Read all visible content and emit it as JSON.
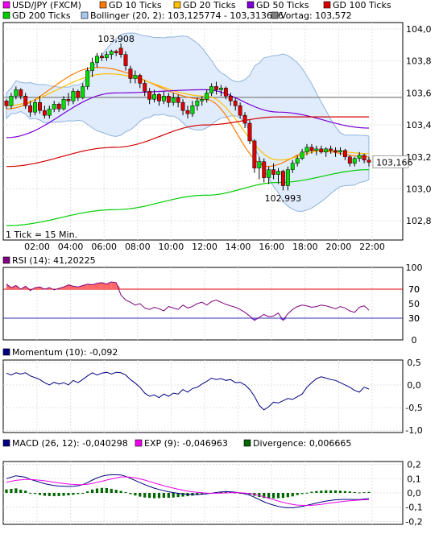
{
  "chart_data": [
    {
      "type": "candlestick",
      "panel": "price",
      "legend": [
        {
          "label": "USD/JPY (FXCM)",
          "color": "#ee00ee"
        },
        {
          "label": "GD 10 Ticks",
          "color": "#ff7a00"
        },
        {
          "label": "GD 20 Ticks",
          "color": "#ffc000"
        },
        {
          "label": "GD 50 Ticks",
          "color": "#7a00d6"
        },
        {
          "label": "GD 100 Ticks",
          "color": "#d40000"
        },
        {
          "label": "GD 200 Ticks",
          "color": "#00cc00"
        },
        {
          "label": "Bollinger (20, 2): 103,125774 - 103,313676",
          "color": "#a8c8f0"
        },
        {
          "label": "Vortag: 103,572",
          "color": "#808080"
        }
      ],
      "x_ticks": [
        "02:00",
        "04:00",
        "06:00",
        "08:00",
        "10:00",
        "12:00",
        "14:00",
        "16:00",
        "18:00",
        "20:00",
        "22:00"
      ],
      "y_ticks": [
        "104,0",
        "103,8",
        "103,6",
        "103,4",
        "103,2",
        "103,0",
        "102,8"
      ],
      "ylim": [
        102.68,
        104.04
      ],
      "annotations": {
        "high": "103,908",
        "low": "102,993",
        "last": "103,166",
        "tick_note": "1 Tick = 15 Min."
      },
      "vortag": 103.572,
      "candles": [
        [
          103.55,
          103.56,
          103.5,
          103.52
        ],
        [
          103.52,
          103.6,
          103.5,
          103.58
        ],
        [
          103.58,
          103.64,
          103.56,
          103.62
        ],
        [
          103.62,
          103.63,
          103.56,
          103.58
        ],
        [
          103.58,
          103.6,
          103.5,
          103.52
        ],
        [
          103.52,
          103.55,
          103.45,
          103.48
        ],
        [
          103.48,
          103.56,
          103.46,
          103.54
        ],
        [
          103.54,
          103.58,
          103.47,
          103.49
        ],
        [
          103.49,
          103.52,
          103.44,
          103.46
        ],
        [
          103.46,
          103.52,
          103.44,
          103.5
        ],
        [
          103.5,
          103.55,
          103.48,
          103.53
        ],
        [
          103.53,
          103.54,
          103.48,
          103.5
        ],
        [
          103.5,
          103.58,
          103.49,
          103.56
        ],
        [
          103.56,
          103.6,
          103.52,
          103.55
        ],
        [
          103.55,
          103.63,
          103.53,
          103.61
        ],
        [
          103.61,
          103.62,
          103.55,
          103.57
        ],
        [
          103.57,
          103.66,
          103.56,
          103.64
        ],
        [
          103.64,
          103.76,
          103.62,
          103.74
        ],
        [
          103.74,
          103.82,
          103.7,
          103.79
        ],
        [
          103.79,
          103.85,
          103.76,
          103.83
        ],
        [
          103.83,
          103.85,
          103.8,
          103.82
        ],
        [
          103.82,
          103.86,
          103.8,
          103.84
        ],
        [
          103.84,
          103.87,
          103.81,
          103.86
        ],
        [
          103.86,
          103.87,
          103.83,
          103.85
        ],
        [
          103.88,
          103.91,
          103.82,
          103.84
        ],
        [
          103.84,
          103.86,
          103.74,
          103.77
        ],
        [
          103.75,
          103.77,
          103.66,
          103.69
        ],
        [
          103.69,
          103.74,
          103.66,
          103.71
        ],
        [
          103.71,
          103.72,
          103.63,
          103.66
        ],
        [
          103.66,
          103.68,
          103.58,
          103.61
        ],
        [
          103.61,
          103.63,
          103.53,
          103.56
        ],
        [
          103.56,
          103.62,
          103.54,
          103.59
        ],
        [
          103.59,
          103.6,
          103.52,
          103.55
        ],
        [
          103.55,
          103.61,
          103.53,
          103.58
        ],
        [
          103.58,
          103.6,
          103.51,
          103.54
        ],
        [
          103.54,
          103.6,
          103.52,
          103.57
        ],
        [
          103.57,
          103.59,
          103.51,
          103.54
        ],
        [
          103.54,
          103.56,
          103.46,
          103.49
        ],
        [
          103.49,
          103.52,
          103.44,
          103.47
        ],
        [
          103.47,
          103.55,
          103.45,
          103.52
        ],
        [
          103.52,
          103.57,
          103.49,
          103.55
        ],
        [
          103.55,
          103.58,
          103.52,
          103.56
        ],
        [
          103.56,
          103.62,
          103.54,
          103.6
        ],
        [
          103.6,
          103.66,
          103.58,
          103.64
        ],
        [
          103.64,
          103.67,
          103.59,
          103.62
        ],
        [
          103.62,
          103.65,
          103.58,
          103.63
        ],
        [
          103.63,
          103.64,
          103.56,
          103.58
        ],
        [
          103.58,
          103.6,
          103.52,
          103.55
        ],
        [
          103.55,
          103.57,
          103.49,
          103.52
        ],
        [
          103.52,
          103.54,
          103.44,
          103.46
        ],
        [
          103.46,
          103.48,
          103.38,
          103.41
        ],
        [
          103.41,
          103.43,
          103.28,
          103.3
        ],
        [
          103.3,
          103.31,
          103.1,
          103.13
        ],
        [
          103.13,
          103.2,
          103.06,
          103.17
        ],
        [
          103.17,
          103.19,
          103.04,
          103.07
        ],
        [
          103.07,
          103.14,
          103.03,
          103.12
        ],
        [
          103.12,
          103.16,
          103.06,
          103.09
        ],
        [
          103.09,
          103.13,
          103.03,
          103.11
        ],
        [
          103.11,
          103.12,
          102.99,
          103.02
        ],
        [
          103.02,
          103.14,
          102.99,
          103.12
        ],
        [
          103.12,
          103.18,
          103.1,
          103.16
        ],
        [
          103.16,
          103.21,
          103.14,
          103.19
        ],
        [
          103.19,
          103.25,
          103.18,
          103.23
        ],
        [
          103.23,
          103.28,
          103.21,
          103.26
        ],
        [
          103.26,
          103.28,
          103.22,
          103.24
        ],
        [
          103.24,
          103.27,
          103.21,
          103.25
        ],
        [
          103.25,
          103.27,
          103.22,
          103.23
        ],
        [
          103.23,
          103.26,
          103.2,
          103.25
        ],
        [
          103.25,
          103.27,
          103.22,
          103.24
        ],
        [
          103.24,
          103.26,
          103.2,
          103.23
        ],
        [
          103.23,
          103.26,
          103.21,
          103.24
        ],
        [
          103.24,
          103.25,
          103.18,
          103.2
        ],
        [
          103.2,
          103.21,
          103.14,
          103.16
        ],
        [
          103.16,
          103.2,
          103.14,
          103.19
        ],
        [
          103.19,
          103.23,
          103.17,
          103.21
        ],
        [
          103.21,
          103.22,
          103.16,
          103.18
        ],
        [
          103.18,
          103.2,
          103.14,
          103.166
        ]
      ],
      "series": [
        {
          "name": "GD 10 Ticks",
          "color": "#ff7a00",
          "y0": 103.5,
          "y1": 103.2,
          "via": [
            [
              0.25,
              103.76
            ],
            [
              0.55,
              103.56
            ],
            [
              0.72,
              103.14
            ],
            [
              0.85,
              103.24
            ]
          ]
        },
        {
          "name": "GD 20 Ticks",
          "color": "#ffc000",
          "y0": 103.52,
          "y1": 103.22,
          "via": [
            [
              0.28,
              103.72
            ],
            [
              0.55,
              103.58
            ],
            [
              0.75,
              103.18
            ],
            [
              0.88,
              103.24
            ]
          ]
        },
        {
          "name": "GD 50 Ticks",
          "color": "#7a00d6",
          "y0": 103.32,
          "y1": 103.38,
          "via": [
            [
              0.3,
              103.6
            ],
            [
              0.55,
              103.62
            ],
            [
              0.75,
              103.48
            ]
          ]
        },
        {
          "name": "GD 100 Ticks",
          "color": "#d40000",
          "y0": 103.14,
          "y1": 103.45,
          "via": [
            [
              0.3,
              103.26
            ],
            [
              0.55,
              103.4
            ],
            [
              0.75,
              103.45
            ]
          ]
        },
        {
          "name": "GD 200 Ticks",
          "color": "#00cc00",
          "y0": 102.77,
          "y1": 103.12,
          "via": [
            [
              0.3,
              102.87
            ],
            [
              0.55,
              102.96
            ],
            [
              0.75,
              103.04
            ]
          ]
        }
      ]
    },
    {
      "type": "line",
      "panel": "rsi",
      "legend": [
        {
          "label": "RSI (14): 41,20225",
          "color": "#800080"
        }
      ],
      "y_ticks": [
        "100",
        "70",
        "50",
        "30",
        "0"
      ],
      "ylim": [
        0,
        100
      ],
      "levels": [
        70,
        30
      ],
      "values": [
        77,
        72,
        75,
        70,
        74,
        68,
        72,
        73,
        70,
        72,
        69,
        71,
        73,
        76,
        74,
        73,
        75,
        77,
        76,
        78,
        79,
        77,
        80,
        79,
        62,
        55,
        52,
        48,
        50,
        44,
        42,
        45,
        43,
        40,
        46,
        44,
        42,
        48,
        44,
        46,
        50,
        52,
        48,
        53,
        55,
        52,
        49,
        47,
        45,
        42,
        38,
        33,
        27,
        31,
        35,
        32,
        33,
        37,
        27,
        36,
        42,
        46,
        48,
        47,
        45,
        46,
        48,
        47,
        45,
        43,
        46,
        44,
        40,
        38,
        45,
        47,
        41
      ]
    },
    {
      "type": "line",
      "panel": "momentum",
      "legend": [
        {
          "label": "Momentum (10): -0,092",
          "color": "#000080"
        }
      ],
      "y_ticks": [
        "0,5",
        "0,0",
        "-0,5",
        "-1,0"
      ],
      "ylim": [
        -1.05,
        0.55
      ],
      "values": [
        0.26,
        0.22,
        0.27,
        0.24,
        0.27,
        0.2,
        0.16,
        0.12,
        0.05,
        0.0,
        0.06,
        0.02,
        0.05,
        0.0,
        0.1,
        0.05,
        0.12,
        0.2,
        0.27,
        0.22,
        0.26,
        0.28,
        0.24,
        0.28,
        0.27,
        0.22,
        0.12,
        0.04,
        -0.05,
        -0.18,
        -0.25,
        -0.22,
        -0.28,
        -0.2,
        -0.25,
        -0.18,
        -0.2,
        -0.1,
        -0.16,
        -0.08,
        -0.05,
        0.02,
        0.08,
        0.15,
        0.12,
        0.14,
        0.1,
        0.12,
        0.05,
        0.06,
        0.0,
        -0.1,
        -0.25,
        -0.45,
        -0.55,
        -0.48,
        -0.38,
        -0.4,
        -0.35,
        -0.3,
        -0.32,
        -0.26,
        -0.2,
        -0.05,
        0.05,
        0.14,
        0.18,
        0.15,
        0.12,
        0.1,
        0.05,
        0.0,
        -0.05,
        -0.12,
        -0.16,
        -0.05,
        -0.09
      ]
    },
    {
      "type": "line",
      "panel": "macd",
      "legend": [
        {
          "label": "MACD (26, 12): -0,040298",
          "color": "#000080"
        },
        {
          "label": "EXP (9): -0,046963",
          "color": "#ee00ee"
        },
        {
          "label": "Divergence: 0,006665",
          "color": "#006600"
        }
      ],
      "y_ticks": [
        "0,2",
        "0,1",
        "0,0",
        "-0,1",
        "-0,2"
      ],
      "ylim": [
        -0.22,
        0.22
      ],
      "macd": [
        0.1,
        0.11,
        0.12,
        0.115,
        0.11,
        0.095,
        0.085,
        0.075,
        0.065,
        0.058,
        0.052,
        0.048,
        0.046,
        0.045,
        0.047,
        0.05,
        0.058,
        0.072,
        0.09,
        0.105,
        0.117,
        0.124,
        0.127,
        0.127,
        0.126,
        0.117,
        0.102,
        0.087,
        0.072,
        0.058,
        0.045,
        0.033,
        0.024,
        0.016,
        0.008,
        0.002,
        -0.003,
        -0.007,
        -0.01,
        -0.011,
        -0.011,
        -0.009,
        -0.006,
        -0.002,
        0.003,
        0.007,
        0.009,
        0.008,
        0.005,
        0.0,
        -0.007,
        -0.016,
        -0.03,
        -0.046,
        -0.062,
        -0.075,
        -0.085,
        -0.094,
        -0.101,
        -0.104,
        -0.104,
        -0.1,
        -0.094,
        -0.087,
        -0.079,
        -0.071,
        -0.064,
        -0.057,
        -0.052,
        -0.048,
        -0.046,
        -0.045,
        -0.045,
        -0.046,
        -0.047,
        -0.043,
        -0.04
      ],
      "exp": [
        0.075,
        0.082,
        0.088,
        0.092,
        0.094,
        0.094,
        0.092,
        0.089,
        0.085,
        0.08,
        0.075,
        0.07,
        0.066,
        0.062,
        0.06,
        0.058,
        0.058,
        0.061,
        0.066,
        0.074,
        0.082,
        0.09,
        0.098,
        0.105,
        0.112,
        0.112,
        0.11,
        0.105,
        0.098,
        0.09,
        0.08,
        0.07,
        0.06,
        0.05,
        0.042,
        0.034,
        0.026,
        0.019,
        0.013,
        0.008,
        0.004,
        0.001,
        -0.001,
        -0.002,
        -0.002,
        -0.001,
        0.0,
        0.001,
        0.002,
        0.001,
        -0.001,
        -0.004,
        -0.01,
        -0.018,
        -0.027,
        -0.037,
        -0.047,
        -0.057,
        -0.066,
        -0.074,
        -0.08,
        -0.085,
        -0.087,
        -0.088,
        -0.087,
        -0.084,
        -0.08,
        -0.075,
        -0.07,
        -0.066,
        -0.062,
        -0.058,
        -0.055,
        -0.052,
        -0.05,
        -0.048,
        -0.047
      ]
    }
  ]
}
